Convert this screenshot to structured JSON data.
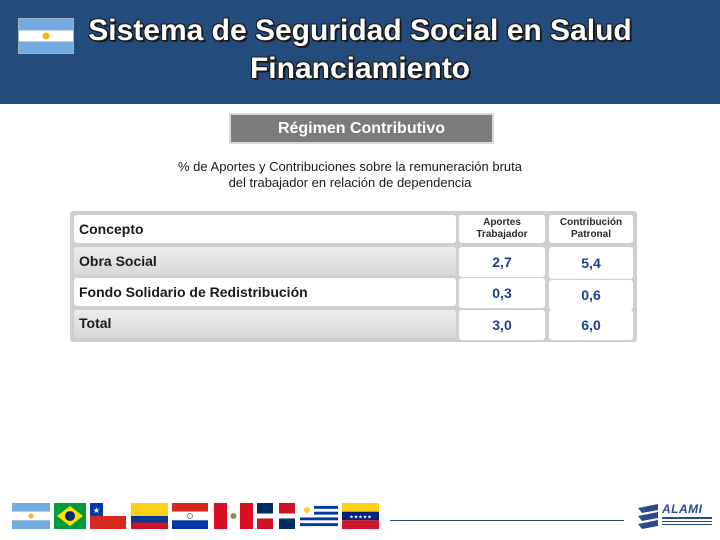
{
  "header": {
    "title_line1": "Sistema de Seguridad Social en Salud",
    "title_line2": "Financiamiento",
    "colors": {
      "background": "#234b7c",
      "text": "#ffffff"
    },
    "flag_icon": "argentina-flag-icon"
  },
  "section": {
    "label": "Régimen Contributivo",
    "subtitle_line1": "% de Aportes y Contribuciones sobre la remuneración bruta",
    "subtitle_line2": "del trabajador en relación de dependencia"
  },
  "table": {
    "headers": {
      "concept": "Concepto",
      "aportes_line1": "Aportes",
      "aportes_line2": "Trabajador",
      "contrib_line1": "Contribución",
      "contrib_line2": "Patronal"
    },
    "rows": [
      {
        "concept": "Obra Social",
        "aportes": "2,7",
        "contribucion": "5,4"
      },
      {
        "concept": "Fondo Solidario de Redistribución",
        "aportes": "0,3",
        "contribucion": "0,6"
      },
      {
        "concept": "Total",
        "aportes": "3,0",
        "contribucion": "6,0"
      }
    ]
  },
  "footer": {
    "flags": [
      "argentina-flag-icon",
      "brazil-flag-icon",
      "chile-flag-icon",
      "colombia-flag-icon",
      "paraguay-flag-icon",
      "peru-flag-icon",
      "dominican-republic-flag-icon",
      "uruguay-flag-icon",
      "venezuela-flag-icon"
    ],
    "logo": {
      "name": "ALAMI",
      "icon": "alami-logo-icon"
    }
  }
}
